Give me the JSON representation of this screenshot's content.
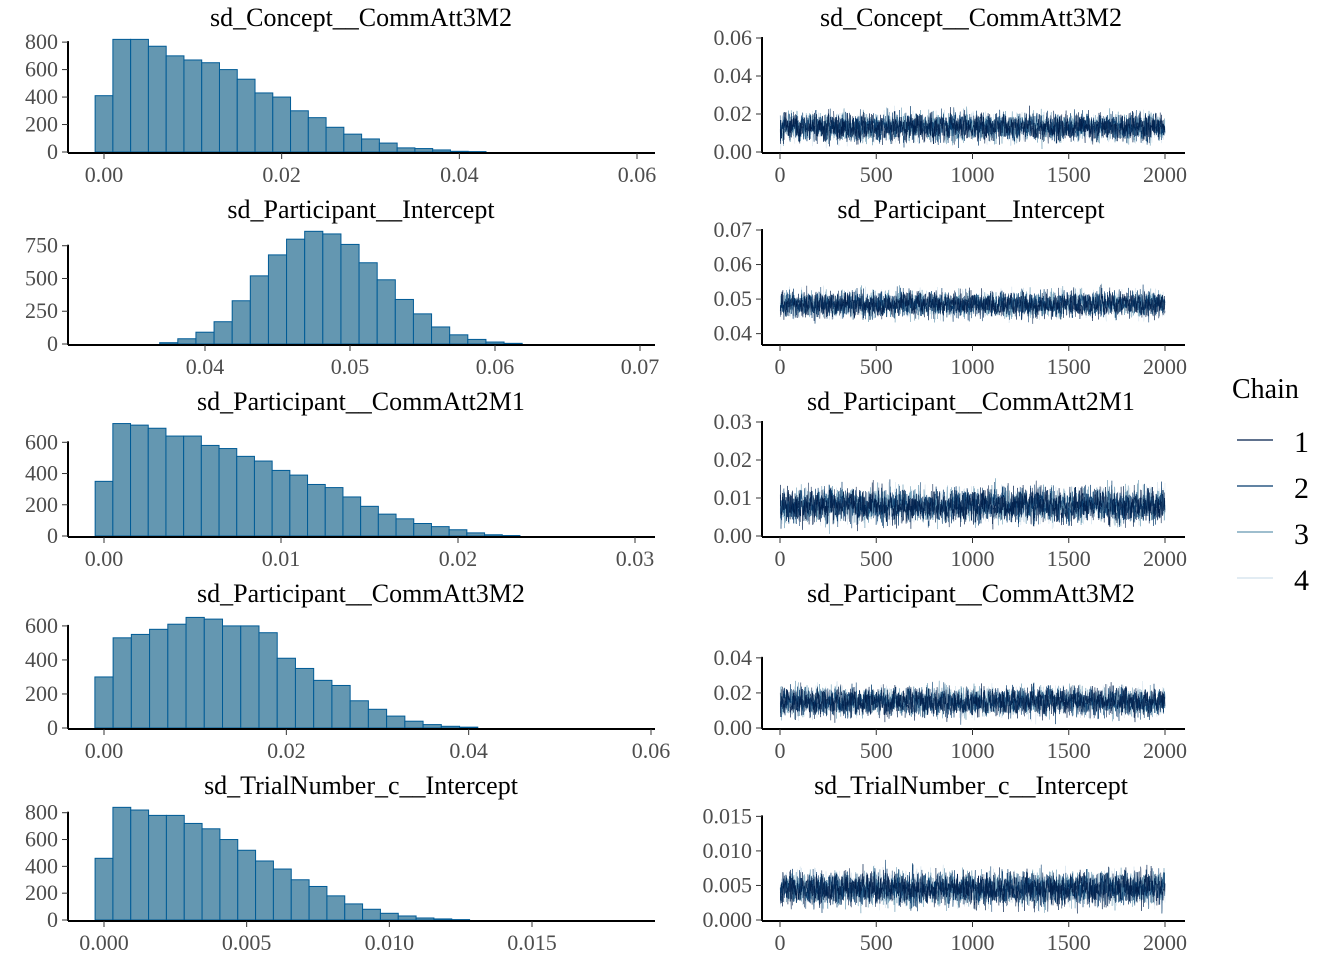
{
  "colors": {
    "hist_fill": "#6497b1",
    "hist_stroke": "#005b96",
    "chains": [
      "#011f4b",
      "#03396c",
      "#6497b1",
      "#d1e1ec"
    ]
  },
  "legend": {
    "title": "Chain",
    "labels": [
      "1",
      "2",
      "3",
      "4"
    ]
  },
  "chart_data": [
    {
      "type": "bar",
      "title": "sd_Concept__CommAtt3M2",
      "bin_start": 0.0,
      "bin_width": 0.002,
      "values": [
        410,
        820,
        820,
        770,
        700,
        670,
        650,
        600,
        530,
        430,
        400,
        300,
        250,
        180,
        130,
        95,
        65,
        30,
        25,
        15,
        5,
        3
      ],
      "xlim": [
        0.0,
        0.06
      ],
      "xticks": [
        0.0,
        0.02,
        0.04,
        0.06
      ],
      "xtick_labels": [
        "0.00",
        "0.02",
        "0.04",
        "0.06"
      ],
      "ylim": [
        0,
        830
      ],
      "yticks": [
        0,
        200,
        400,
        600,
        800
      ],
      "ytick_labels": [
        "0",
        "200",
        "400",
        "600",
        "800"
      ]
    },
    {
      "type": "line",
      "title": "sd_Concept__CommAtt3M2",
      "iterations": 2000,
      "chains": 4,
      "center": 0.013,
      "spread": 0.009,
      "floor": 0.0,
      "xticks": [
        0,
        500,
        1000,
        1500,
        2000
      ],
      "xtick_labels": [
        "0",
        "500",
        "1000",
        "1500",
        "2000"
      ],
      "ylim": [
        0.0,
        0.06
      ],
      "yticks": [
        0.0,
        0.02,
        0.04,
        0.06
      ],
      "ytick_labels": [
        "0.00",
        "0.02",
        "0.04",
        "0.06"
      ]
    },
    {
      "type": "bar",
      "title": "sd_Participant__Intercept",
      "bin_start": 0.0375,
      "bin_width": 0.00125,
      "values": [
        10,
        40,
        90,
        170,
        330,
        520,
        680,
        800,
        860,
        840,
        760,
        620,
        490,
        340,
        230,
        130,
        70,
        35,
        15,
        5
      ],
      "xlim": [
        0.04,
        0.07
      ],
      "xticks": [
        0.04,
        0.05,
        0.06,
        0.07
      ],
      "xtick_labels": [
        "0.04",
        "0.05",
        "0.06",
        "0.07"
      ],
      "ylim": [
        0,
        870
      ],
      "yticks": [
        0,
        250,
        500,
        750
      ],
      "ytick_labels": [
        "0",
        "250",
        "500",
        "750"
      ]
    },
    {
      "type": "line",
      "title": "sd_Participant__Intercept",
      "iterations": 2000,
      "chains": 4,
      "center": 0.0485,
      "spread": 0.0045,
      "floor": 0.03,
      "xticks": [
        0,
        500,
        1000,
        1500,
        2000
      ],
      "xtick_labels": [
        "0",
        "500",
        "1000",
        "1500",
        "2000"
      ],
      "ylim": [
        0.037,
        0.07
      ],
      "yticks": [
        0.04,
        0.05,
        0.06,
        0.07
      ],
      "ytick_labels": [
        "0.04",
        "0.05",
        "0.06",
        "0.07"
      ]
    },
    {
      "type": "bar",
      "title": "sd_Participant__CommAtt2M1",
      "bin_start": 0.0,
      "bin_width": 0.001,
      "values": [
        350,
        720,
        710,
        690,
        640,
        640,
        580,
        560,
        510,
        480,
        420,
        390,
        330,
        310,
        250,
        190,
        140,
        110,
        80,
        60,
        40,
        20,
        8,
        3
      ],
      "xlim": [
        0.0,
        0.03
      ],
      "xticks": [
        0.0,
        0.01,
        0.02,
        0.03
      ],
      "xtick_labels": [
        "0.00",
        "0.01",
        "0.02",
        "0.03"
      ],
      "ylim": [
        0,
        730
      ],
      "yticks": [
        0,
        200,
        400,
        600
      ],
      "ytick_labels": [
        "0",
        "200",
        "400",
        "600"
      ]
    },
    {
      "type": "line",
      "title": "sd_Participant__CommAtt2M1",
      "iterations": 2000,
      "chains": 4,
      "center": 0.008,
      "spread": 0.0055,
      "floor": 0.0,
      "xticks": [
        0,
        500,
        1000,
        1500,
        2000
      ],
      "xtick_labels": [
        "0",
        "500",
        "1000",
        "1500",
        "2000"
      ],
      "ylim": [
        0.0,
        0.03
      ],
      "yticks": [
        0.0,
        0.01,
        0.02,
        0.03
      ],
      "ytick_labels": [
        "0.00",
        "0.01",
        "0.02",
        "0.03"
      ]
    },
    {
      "type": "bar",
      "title": "sd_Participant__CommAtt3M2",
      "bin_start": 0.0,
      "bin_width": 0.002,
      "values": [
        300,
        530,
        550,
        580,
        610,
        650,
        640,
        600,
        600,
        560,
        410,
        350,
        280,
        250,
        160,
        110,
        70,
        40,
        20,
        10,
        5
      ],
      "xlim": [
        0.0,
        0.06
      ],
      "xticks": [
        0.0,
        0.02,
        0.04,
        0.06
      ],
      "xtick_labels": [
        "0.00",
        "0.02",
        "0.04",
        "0.06"
      ],
      "ylim": [
        0,
        670
      ],
      "yticks": [
        0,
        200,
        400,
        600
      ],
      "ytick_labels": [
        "0",
        "200",
        "400",
        "600"
      ]
    },
    {
      "type": "line",
      "title": "sd_Participant__CommAtt3M2",
      "iterations": 2000,
      "chains": 4,
      "center": 0.015,
      "spread": 0.01,
      "floor": 0.0,
      "xticks": [
        0,
        500,
        1000,
        1500,
        2000
      ],
      "xtick_labels": [
        "0",
        "500",
        "1000",
        "1500",
        "2000"
      ],
      "ylim": [
        0.0,
        0.065
      ],
      "yticks": [
        0.0,
        0.02,
        0.04
      ],
      "ytick_labels": [
        "0.00",
        "0.02",
        "0.04"
      ]
    },
    {
      "type": "bar",
      "title": "sd_TrialNumber_c__Intercept",
      "bin_start": 0.0,
      "bin_width": 0.000625,
      "values": [
        460,
        840,
        820,
        780,
        780,
        720,
        680,
        600,
        520,
        440,
        380,
        300,
        250,
        180,
        120,
        80,
        50,
        30,
        15,
        8,
        3
      ],
      "xlim": [
        0.0,
        0.015
      ],
      "xticks": [
        0.0,
        0.005,
        0.01,
        0.015
      ],
      "xtick_labels": [
        "0.000",
        "0.005",
        "0.010",
        "0.015"
      ],
      "ylim": [
        0,
        850
      ],
      "yticks": [
        0,
        200,
        400,
        600,
        800
      ],
      "ytick_labels": [
        "0",
        "200",
        "400",
        "600",
        "800"
      ]
    },
    {
      "type": "line",
      "title": "sd_TrialNumber_c__Intercept",
      "iterations": 2000,
      "chains": 4,
      "center": 0.0045,
      "spread": 0.003,
      "floor": 0.0,
      "xticks": [
        0,
        500,
        1000,
        1500,
        2000
      ],
      "xtick_labels": [
        "0",
        "500",
        "1000",
        "1500",
        "2000"
      ],
      "ylim": [
        0.0,
        0.0165
      ],
      "yticks": [
        0.0,
        0.005,
        0.01,
        0.015
      ],
      "ytick_labels": [
        "0.000",
        "0.005",
        "0.010",
        "0.015"
      ]
    }
  ]
}
